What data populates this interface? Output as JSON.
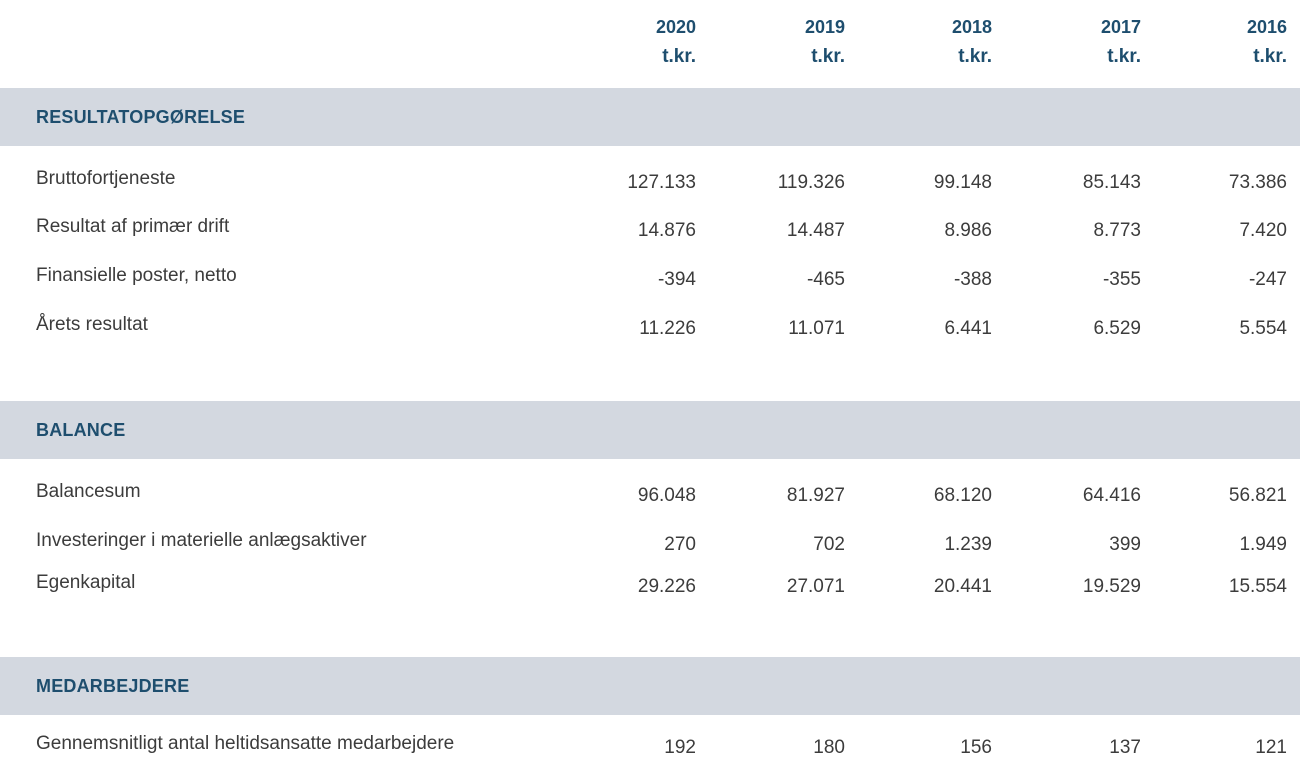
{
  "columns": [
    {
      "year": "2020",
      "unit": "t.kr."
    },
    {
      "year": "2019",
      "unit": "t.kr."
    },
    {
      "year": "2018",
      "unit": "t.kr."
    },
    {
      "year": "2017",
      "unit": "t.kr."
    },
    {
      "year": "2016",
      "unit": "t.kr."
    }
  ],
  "sections": [
    {
      "title": "RESULTATOPGØRELSE",
      "rows": [
        {
          "label": "Bruttofortjeneste",
          "values": [
            "127.133",
            "119.326",
            "99.148",
            "85.143",
            "73.386"
          ]
        },
        {
          "label": "Resultat af primær drift",
          "values": [
            "14.876",
            "14.487",
            "8.986",
            "8.773",
            "7.420"
          ]
        },
        {
          "label": "Finansielle poster, netto",
          "values": [
            "-394",
            "-465",
            "-388",
            "-355",
            "-247"
          ]
        },
        {
          "label": "Årets resultat",
          "values": [
            "11.226",
            "11.071",
            "6.441",
            "6.529",
            "5.554"
          ]
        }
      ]
    },
    {
      "title": "BALANCE",
      "rows": [
        {
          "label": "Balancesum",
          "values": [
            "96.048",
            "81.927",
            "68.120",
            "64.416",
            "56.821"
          ]
        },
        {
          "label": "Investeringer i materielle anlægsaktiver",
          "values": [
            "270",
            "702",
            "1.239",
            "399",
            "1.949"
          ]
        },
        {
          "label": "Egenkapital",
          "values": [
            "29.226",
            "27.071",
            "20.441",
            "19.529",
            "15.554"
          ]
        }
      ]
    },
    {
      "title": "MEDARBEJDERE",
      "rows": [
        {
          "label": "Gennemsnitligt antal heltidsansatte medarbejdere",
          "values": [
            "192",
            "180",
            "156",
            "137",
            "121"
          ]
        }
      ]
    }
  ]
}
